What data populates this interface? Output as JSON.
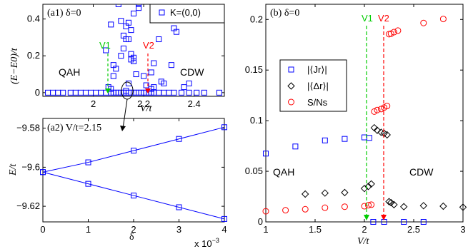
{
  "chart_data": [
    {
      "id": "a1",
      "type": "scatter",
      "title": "(a1) δ=0",
      "xlabel": "V/t",
      "ylabel": "(E−E0)/t",
      "xlim": [
        1.8,
        2.52
      ],
      "ylim": [
        -0.02,
        0.48
      ],
      "xticks": [
        2,
        2.2,
        2.4
      ],
      "yticks": [
        0,
        0.2,
        0.4
      ],
      "ytick_labels": [
        "0",
        "0.2",
        "0.4"
      ],
      "legend": {
        "label": "K=(0,0)",
        "placement": "top-right"
      },
      "series": [
        {
          "name": "K=(0,0)",
          "color": "#0000ff",
          "marker": "square",
          "points": [
            [
              1.82,
              0
            ],
            [
              1.84,
              0
            ],
            [
              1.86,
              0
            ],
            [
              1.88,
              0
            ],
            [
              1.91,
              0
            ],
            [
              1.93,
              0
            ],
            [
              1.95,
              0
            ],
            [
              1.97,
              0
            ],
            [
              1.99,
              0
            ],
            [
              2.01,
              0
            ],
            [
              2.03,
              0
            ],
            [
              2.05,
              0
            ],
            [
              2.07,
              0
            ],
            [
              2.08,
              0
            ],
            [
              2.09,
              0
            ],
            [
              2.1,
              0
            ],
            [
              2.11,
              0
            ],
            [
              2.12,
              0
            ],
            [
              2.13,
              0
            ],
            [
              2.14,
              0
            ],
            [
              2.15,
              0
            ],
            [
              2.16,
              0
            ],
            [
              2.17,
              0
            ],
            [
              2.18,
              0
            ],
            [
              2.19,
              0
            ],
            [
              2.2,
              0
            ],
            [
              2.21,
              0
            ],
            [
              2.22,
              0
            ],
            [
              2.23,
              0
            ],
            [
              2.24,
              0
            ],
            [
              2.26,
              0
            ],
            [
              2.28,
              0
            ],
            [
              2.3,
              0
            ],
            [
              2.32,
              0
            ],
            [
              2.35,
              0
            ],
            [
              2.38,
              0
            ],
            [
              2.41,
              0
            ],
            [
              2.44,
              0
            ],
            [
              2.5,
              0
            ],
            [
              2.05,
              0.23
            ],
            [
              2.07,
              0.37
            ],
            [
              2.08,
              0.09
            ],
            [
              2.08,
              0.15
            ],
            [
              2.09,
              0.13
            ],
            [
              2.1,
              0.48
            ],
            [
              2.11,
              0.2
            ],
            [
              2.11,
              0.39
            ],
            [
              2.12,
              0.24
            ],
            [
              2.12,
              0.31
            ],
            [
              2.13,
              0.36
            ],
            [
              2.13,
              0.29
            ],
            [
              2.14,
              0.29
            ],
            [
              2.14,
              0.05
            ],
            [
              2.14,
              0.38
            ],
            [
              2.15,
              0.34
            ],
            [
              2.15,
              0.21
            ],
            [
              2.15,
              0.18
            ],
            [
              2.16,
              0.17
            ],
            [
              2.16,
              0.19
            ],
            [
              2.16,
              0.43
            ],
            [
              2.17,
              0.1
            ],
            [
              2.18,
              0.48
            ],
            [
              2.18,
              0.46
            ],
            [
              2.2,
              0.09
            ],
            [
              2.21,
              0.04
            ],
            [
              2.23,
              0.11
            ],
            [
              2.24,
              0.16
            ],
            [
              2.26,
              0.29
            ],
            [
              2.27,
              0.06
            ],
            [
              2.28,
              0.05
            ],
            [
              2.31,
              0.15
            ],
            [
              2.32,
              0.35
            ],
            [
              2.33,
              0.33
            ],
            [
              2.36,
              0.03
            ],
            [
              2.38,
              0.05
            ],
            [
              2.06,
              0.03
            ],
            [
              2.07,
              0.02
            ],
            [
              2.13,
              0.01
            ],
            [
              2.23,
              0.02
            ],
            [
              2.24,
              0.03
            ]
          ]
        }
      ],
      "annotations": [
        {
          "text": "V1",
          "x": 2.09,
          "arrow_color": "#00cc00"
        },
        {
          "text": "V2",
          "x": 2.245,
          "arrow_color": "#ff0000"
        },
        {
          "text": "QAH"
        },
        {
          "text": "CDW"
        }
      ]
    },
    {
      "id": "a2",
      "type": "line",
      "title": "(a2) V/t=2.15",
      "xlabel": "δ",
      "ylabel": "E/t",
      "xlim": [
        0,
        4
      ],
      "ylim": [
        -9.628,
        -9.575
      ],
      "xticks": [
        0,
        1,
        2,
        3,
        4
      ],
      "yticks": [
        -9.58,
        -9.6,
        -9.62
      ],
      "ytick_labels": [
        "−9.58",
        "−9.6",
        "−9.62"
      ],
      "x_multiplier": "x 10",
      "x_multiplier_exp": "−3",
      "series": [
        {
          "name": "upper",
          "color": "#0000ff",
          "marker": "square",
          "x": [
            0,
            1,
            2,
            3,
            4
          ],
          "y": [
            -9.6025,
            -9.5975,
            -9.5915,
            -9.5855,
            -9.5795
          ]
        },
        {
          "name": "lower",
          "color": "#0000ff",
          "marker": "square",
          "x": [
            0,
            1,
            2,
            3,
            4
          ],
          "y": [
            -9.6025,
            -9.6085,
            -9.6145,
            -9.6205,
            -9.6265
          ]
        }
      ]
    },
    {
      "id": "b",
      "type": "scatter",
      "title": "(b) δ=0",
      "xlabel": "V/t",
      "ylabel": "",
      "xlim": [
        1,
        3
      ],
      "ylim": [
        0,
        0.215
      ],
      "xticks": [
        1,
        1.5,
        2,
        2.5,
        3
      ],
      "yticks": [
        0,
        0.05,
        0.1,
        0.15,
        0.2
      ],
      "ytick_labels": [
        "0",
        "0.05",
        "0.1",
        "0.15",
        "0.2"
      ],
      "legend": {
        "placement": "center-left",
        "entries": [
          "|⟨Jr⟩|",
          "|⟨Δr⟩|",
          "S/Ns"
        ]
      },
      "series": [
        {
          "name": "|⟨Jr⟩|",
          "color": "#0000ff",
          "marker": "square",
          "x": [
            1.0,
            1.3,
            1.6,
            1.8,
            2.0,
            2.05,
            2.09,
            2.2,
            2.4,
            2.6
          ],
          "y": [
            0.0675,
            0.0745,
            0.0805,
            0.082,
            0.0835,
            0.083,
            0.0,
            0.0,
            0.0,
            0.0
          ]
        },
        {
          "name": "|⟨Δr⟩|",
          "color": "#000000",
          "marker": "diamond",
          "x": [
            1.4,
            1.6,
            1.8,
            2.0,
            2.04,
            2.07,
            2.1,
            2.13,
            2.17,
            2.2,
            2.23,
            2.25,
            2.27,
            2.3,
            2.4,
            2.6,
            2.8,
            3.0
          ],
          "y": [
            0.0275,
            0.0285,
            0.029,
            0.033,
            0.035,
            0.0375,
            0.093,
            0.0905,
            0.0885,
            0.0875,
            0.086,
            0.02,
            0.019,
            0.017,
            0.015,
            0.016,
            0.0155,
            0.0145
          ]
        },
        {
          "name": "S/Ns",
          "color": "#ff0000",
          "marker": "circle",
          "x": [
            1.0,
            1.2,
            1.4,
            1.6,
            1.8,
            2.0,
            2.04,
            2.07,
            2.1,
            2.13,
            2.17,
            2.2,
            2.23,
            2.25,
            2.27,
            2.3,
            2.34,
            2.6,
            2.8
          ],
          "y": [
            0.0105,
            0.0115,
            0.0125,
            0.014,
            0.015,
            0.0155,
            0.0165,
            0.017,
            0.109,
            0.1105,
            0.1115,
            0.113,
            0.1145,
            0.1855,
            0.186,
            0.1875,
            0.189,
            0.1965,
            0.2005
          ]
        }
      ],
      "annotations": [
        {
          "text": "V1",
          "x": 2.09,
          "arrow_color": "#00cc00"
        },
        {
          "text": "V2",
          "x": 2.245,
          "arrow_color": "#ff0000"
        },
        {
          "text": "QAH"
        },
        {
          "text": "CDW"
        }
      ]
    }
  ]
}
